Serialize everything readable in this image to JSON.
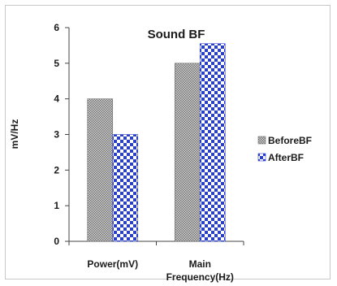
{
  "chart_data": {
    "type": "bar",
    "title": "Sound BF",
    "xlabel": "",
    "ylabel": "mV/Hz",
    "ylim": [
      0,
      6
    ],
    "yticks": [
      0,
      1,
      2,
      3,
      4,
      5,
      6
    ],
    "categories": [
      {
        "lines": [
          "Power(mV)"
        ]
      },
      {
        "lines": [
          "Main",
          "Frequency(Hz)"
        ]
      }
    ],
    "series": [
      {
        "name": "BeforeBF",
        "values": [
          4,
          5
        ],
        "pattern": "fine-grey-dots"
      },
      {
        "name": "AfterBF",
        "values": [
          3,
          5.55
        ],
        "pattern": "blue-checker"
      }
    ],
    "grid": false,
    "legend": "right",
    "colors": {
      "before_fill": "#9a9a9a",
      "after_fill": "#2b3fc4",
      "axis": "#444444"
    }
  }
}
